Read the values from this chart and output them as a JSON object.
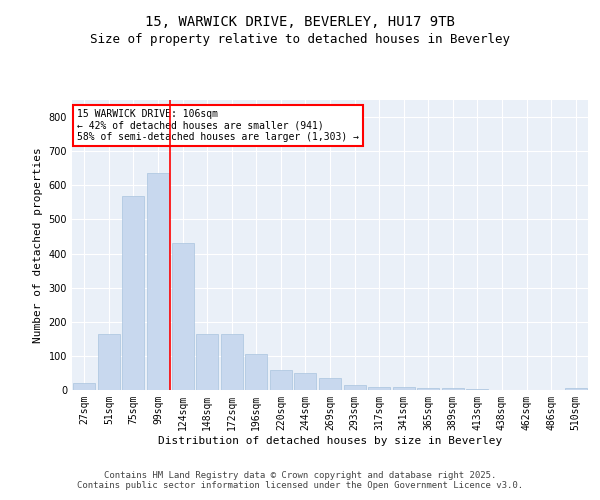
{
  "title1": "15, WARWICK DRIVE, BEVERLEY, HU17 9TB",
  "title2": "Size of property relative to detached houses in Beverley",
  "xlabel": "Distribution of detached houses by size in Beverley",
  "ylabel": "Number of detached properties",
  "categories": [
    "27sqm",
    "51sqm",
    "75sqm",
    "99sqm",
    "124sqm",
    "148sqm",
    "172sqm",
    "196sqm",
    "220sqm",
    "244sqm",
    "269sqm",
    "293sqm",
    "317sqm",
    "341sqm",
    "365sqm",
    "389sqm",
    "413sqm",
    "438sqm",
    "462sqm",
    "486sqm",
    "510sqm"
  ],
  "values": [
    20,
    165,
    570,
    635,
    430,
    165,
    165,
    105,
    60,
    50,
    35,
    15,
    10,
    8,
    5,
    5,
    3,
    0,
    0,
    0,
    5
  ],
  "bar_color": "#c8d8ee",
  "bar_edge_color": "#aac4de",
  "vline_x_index": 3,
  "vline_color": "red",
  "annotation_text": "15 WARWICK DRIVE: 106sqm\n← 42% of detached houses are smaller (941)\n58% of semi-detached houses are larger (1,303) →",
  "ylim": [
    0,
    850
  ],
  "yticks": [
    0,
    100,
    200,
    300,
    400,
    500,
    600,
    700,
    800
  ],
  "bg_color": "#eaf0f8",
  "grid_color": "white",
  "footer": "Contains HM Land Registry data © Crown copyright and database right 2025.\nContains public sector information licensed under the Open Government Licence v3.0.",
  "title_fontsize": 10,
  "subtitle_fontsize": 9,
  "axis_label_fontsize": 8,
  "tick_fontsize": 7,
  "annotation_fontsize": 7,
  "footer_fontsize": 6.5
}
